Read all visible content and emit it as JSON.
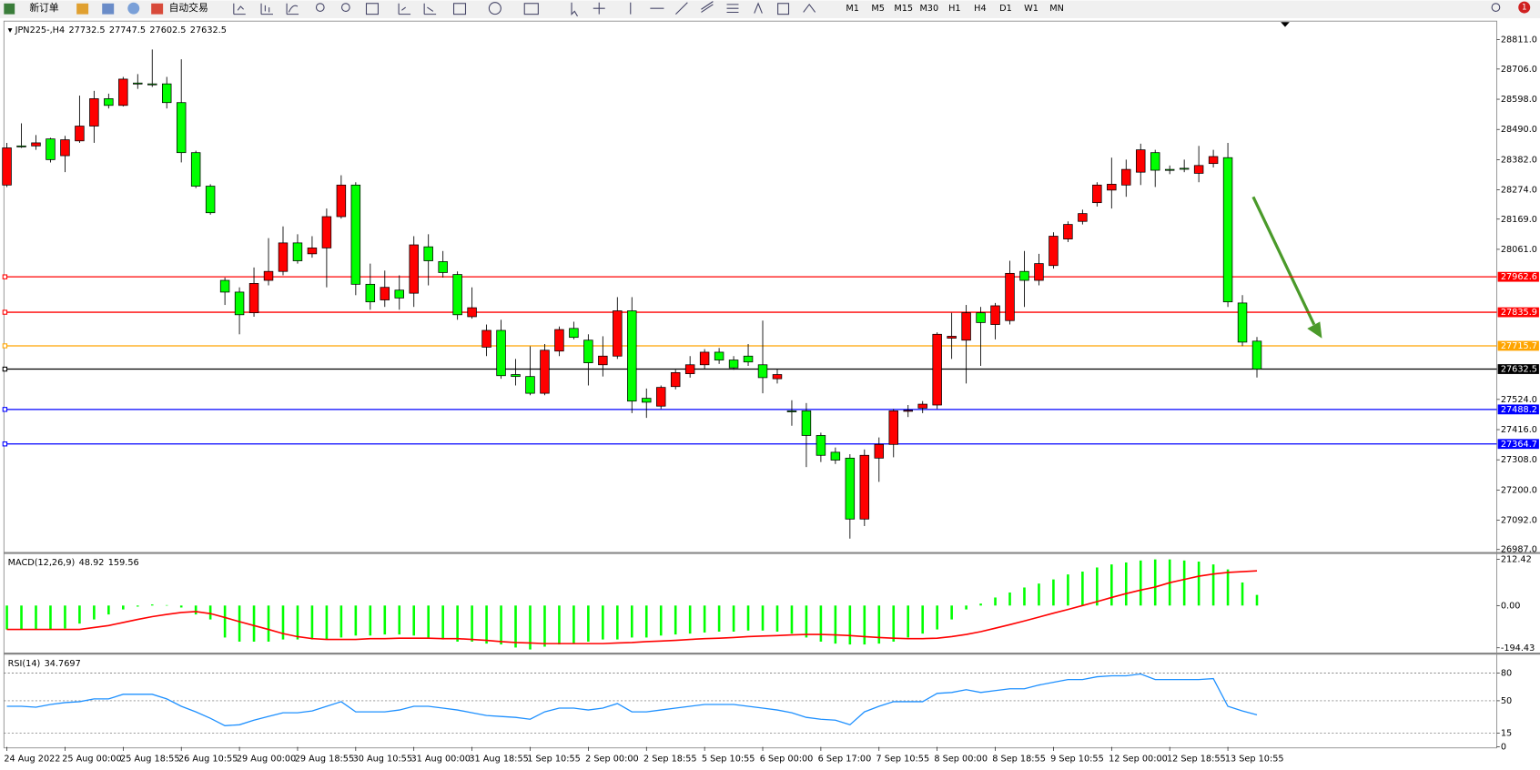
{
  "toolbar": {
    "new_order": "新订单",
    "auto_trading": "自动交易",
    "timeframes": [
      "M1",
      "M5",
      "M15",
      "M30",
      "H1",
      "H4",
      "D1",
      "W1",
      "MN"
    ],
    "notifications": 1
  },
  "chart_data": [
    {
      "type": "candlestick",
      "title": "JPN225-,H4",
      "ohlc_header": [
        27732.5,
        27747.5,
        27602.5,
        27632.5
      ],
      "categories": [
        "24 Aug 2022",
        null,
        null,
        null,
        "25 Aug 00:00",
        null,
        null,
        null,
        "25 Aug 18:55",
        null,
        null,
        null,
        "26 Aug 10:55",
        null,
        null,
        null,
        "29 Aug 00:00",
        null,
        null,
        null,
        "29 Aug 18:55",
        null,
        null,
        null,
        "30 Aug 10:55",
        null,
        null,
        null,
        "31 Aug 00:00",
        null,
        null,
        null,
        "31 Aug 18:55",
        null,
        null,
        null,
        "1 Sep 10:55",
        null,
        null,
        null,
        "2 Sep 00:00",
        null,
        null,
        null,
        "2 Sep 18:55",
        null,
        null,
        null,
        "5 Sep 10:55",
        null,
        null,
        null,
        "6 Sep 00:00",
        null,
        null,
        null,
        "6 Sep 17:00",
        null,
        null,
        null,
        "7 Sep 10:55",
        null,
        null,
        null,
        "8 Sep 00:00",
        null,
        null,
        null,
        "8 Sep 18:55",
        null,
        null,
        null,
        "9 Sep 10:55",
        null,
        null,
        null,
        "12 Sep 00:00",
        null,
        null,
        null,
        "12 Sep 18:55",
        null,
        null,
        null,
        "13 Sep 10:55",
        null,
        null
      ],
      "open": [
        28291,
        28431,
        28431,
        28456,
        28396,
        28449,
        28502,
        28600,
        28576,
        28656,
        28653,
        28653,
        28586,
        28407,
        28287,
        27950,
        27908,
        27834,
        27950,
        27982,
        28084,
        28045,
        28066,
        28178,
        28291,
        27936,
        27880,
        27915,
        27904,
        28070,
        28017,
        27971,
        27820,
        27711,
        27771,
        27613,
        27606,
        27546,
        27697,
        27778,
        27736,
        27648,
        27679,
        27841,
        27528,
        27500,
        27570,
        27616,
        27648,
        27693,
        27665,
        27679,
        27648,
        27598,
        27483,
        27483,
        27395,
        27335,
        27314,
        27096,
        27314,
        27363,
        27483,
        27493,
        27504,
        27743,
        27736,
        27834,
        27792,
        27806,
        27982,
        27950,
        28003,
        28098,
        28161,
        28228,
        28273,
        28291,
        28337,
        28407,
        28347,
        28351,
        28333,
        28368,
        28389,
        27869,
        27732.5
      ],
      "high": [
        28442,
        28512,
        28470,
        28460,
        28467,
        28611,
        28628,
        28618,
        28678,
        28688,
        28776,
        28678,
        28741,
        28414,
        28294,
        27960,
        27925,
        27996,
        28101,
        28143,
        28115,
        28108,
        28207,
        28326,
        28301,
        28010,
        27985,
        27968,
        28108,
        28115,
        28055,
        27982,
        27925,
        27792,
        27809,
        27669,
        27714,
        27722,
        27785,
        27802,
        27757,
        27750,
        27890,
        27890,
        27563,
        27574,
        27630,
        27679,
        27704,
        27708,
        27679,
        27722,
        27806,
        27634,
        27521,
        27511,
        27405,
        27352,
        27328,
        27345,
        27388,
        27490,
        27504,
        27518,
        27764,
        27834,
        27862,
        27855,
        27869,
        28020,
        28055,
        28045,
        28122,
        28161,
        28203,
        28301,
        28389,
        28382,
        28439,
        28417,
        28361,
        28382,
        28431,
        28417,
        28442,
        27897,
        27747.5
      ],
      "low": [
        28284,
        28424,
        28417,
        28372,
        28337,
        28442,
        28442,
        28565,
        28572,
        28635,
        28642,
        28565,
        28372,
        28280,
        28185,
        27862,
        27757,
        27820,
        27932,
        27968,
        28010,
        28031,
        27925,
        28171,
        27897,
        27845,
        27855,
        27845,
        27855,
        27932,
        27960,
        27809,
        27813,
        27679,
        27598,
        27574,
        27539,
        27539,
        27679,
        27739,
        27574,
        27606,
        27669,
        27475,
        27458,
        27490,
        27560,
        27602,
        27634,
        27651,
        27630,
        27644,
        27546,
        27581,
        27430,
        27282,
        27300,
        27293,
        27026,
        27071,
        27229,
        27317,
        27461,
        27475,
        27490,
        27669,
        27581,
        27644,
        27739,
        27792,
        27855,
        27932,
        27992,
        28087,
        28150,
        28214,
        28207,
        28249,
        28291,
        28284,
        28330,
        28337,
        28301,
        28354,
        27855,
        27715,
        27602.5
      ],
      "close": [
        28424,
        28428,
        28442,
        28382,
        28453,
        28502,
        28600,
        28576,
        28670,
        28653,
        28650,
        28586,
        28407,
        28287,
        28192,
        27908,
        27827,
        27939,
        27982,
        28084,
        28020,
        28066,
        28178,
        28291,
        27936,
        27873,
        27925,
        27887,
        28077,
        28020,
        27978,
        27827,
        27852,
        27771,
        27609,
        27606,
        27546,
        27700,
        27774,
        27746,
        27655,
        27679,
        27841,
        27518,
        27514,
        27567,
        27620,
        27648,
        27693,
        27665,
        27637,
        27658,
        27602,
        27613,
        27480,
        27395,
        27324,
        27307,
        27096,
        27324,
        27363,
        27483,
        27485,
        27507,
        27757,
        27750,
        27834,
        27799,
        27859,
        27975,
        27950,
        28010,
        28108,
        28150,
        28189,
        28291,
        28294,
        28347,
        28417,
        28344,
        28344,
        28348,
        28361,
        28393,
        27873,
        27729,
        27632.5
      ],
      "up_color": "#ff0000",
      "down_color": "#00ff00",
      "ylim": [
        26980,
        28874
      ],
      "yticks": [
        {
          "value": 28811,
          "label": "28811.0"
        },
        {
          "value": 28706,
          "label": "28706.0"
        },
        {
          "value": 28598,
          "label": "28598.0"
        },
        {
          "value": 28490,
          "label": "28490.0"
        },
        {
          "value": 28382,
          "label": "28382.0"
        },
        {
          "value": 28274,
          "label": "28274.0"
        },
        {
          "value": 28169,
          "label": "28169.0"
        },
        {
          "value": 28061,
          "label": "28061.0"
        },
        {
          "value": 27524,
          "label": "27524.0"
        },
        {
          "value": 27416,
          "label": "27416.0"
        },
        {
          "value": 27308,
          "label": "27308.0"
        },
        {
          "value": 27200,
          "label": "27200.0"
        },
        {
          "value": 27092,
          "label": "27092.0"
        },
        {
          "value": 26987,
          "label": "26987.0"
        }
      ],
      "hlines": [
        {
          "value": 27962.6,
          "color": "#ff0000"
        },
        {
          "value": 27835.9,
          "color": "#ff0000"
        },
        {
          "value": 27715.7,
          "color": "#ffa500"
        },
        {
          "value": 27632.5,
          "color": "#000000"
        },
        {
          "value": 27488.2,
          "color": "#0000ff"
        },
        {
          "value": 27364.7,
          "color": "#0000ff"
        }
      ]
    },
    {
      "type": "macd",
      "title": "MACD(12,26,9)",
      "header_values": [
        48.92,
        159.56
      ],
      "histogram": [
        -110,
        -110,
        -110,
        -110,
        -106,
        -83,
        -64,
        -41,
        -18,
        -5,
        5,
        2,
        -9,
        -41,
        -64,
        -147,
        -166,
        -166,
        -166,
        -156,
        -156,
        -156,
        -156,
        -147,
        -138,
        -138,
        -133,
        -133,
        -138,
        -147,
        -156,
        -166,
        -166,
        -175,
        -179,
        -193,
        -202,
        -189,
        -179,
        -175,
        -166,
        -156,
        -156,
        -147,
        -147,
        -138,
        -133,
        -129,
        -124,
        -120,
        -120,
        -115,
        -115,
        -120,
        -129,
        -147,
        -166,
        -175,
        -179,
        -179,
        -175,
        -166,
        -147,
        -129,
        -110,
        -64,
        -18,
        9,
        37,
        60,
        83,
        101,
        120,
        143,
        156,
        175,
        189,
        198,
        207,
        212,
        212,
        207,
        202,
        189,
        166,
        106,
        48.92
      ],
      "signal": [
        -110,
        -110,
        -110,
        -110,
        -110,
        -110,
        -101,
        -92,
        -78,
        -64,
        -51,
        -41,
        -32,
        -28,
        -37,
        -55,
        -74,
        -92,
        -110,
        -129,
        -143,
        -152,
        -156,
        -156,
        -156,
        -152,
        -152,
        -150,
        -150,
        -150,
        -152,
        -152,
        -156,
        -160,
        -166,
        -170,
        -172,
        -175,
        -175,
        -175,
        -175,
        -175,
        -172,
        -170,
        -166,
        -163,
        -160,
        -156,
        -152,
        -150,
        -147,
        -143,
        -140,
        -138,
        -135,
        -133,
        -133,
        -135,
        -138,
        -143,
        -147,
        -150,
        -152,
        -152,
        -150,
        -143,
        -133,
        -120,
        -104,
        -88,
        -71,
        -53,
        -35,
        -18,
        0,
        18,
        37,
        55,
        71,
        85,
        105,
        120,
        135,
        145,
        152,
        156,
        159.56
      ],
      "histogram_color": "#00ff00",
      "signal_color": "#ff0000",
      "ylim": [
        -212,
        235
      ],
      "yticks": [
        212.42,
        {
          "value": 0,
          "label": "0.00"
        },
        -194.43
      ]
    },
    {
      "type": "line",
      "title": "RSI(14)",
      "header_value": 34.7697,
      "values": [
        44,
        44,
        43,
        46,
        48,
        49,
        52,
        52,
        57,
        57,
        57,
        52,
        44,
        38,
        31,
        23,
        24,
        29,
        33,
        37,
        37,
        39,
        44,
        49,
        38,
        38,
        38,
        40,
        44,
        44,
        42,
        40,
        37,
        34,
        33,
        32,
        30,
        38,
        42,
        42,
        40,
        42,
        47,
        38,
        38,
        40,
        42,
        44,
        46,
        46,
        46,
        44,
        42,
        40,
        37,
        32,
        30,
        29,
        24,
        38,
        44,
        49,
        49,
        49,
        58,
        59,
        62,
        59,
        61,
        63,
        63,
        67,
        70,
        73,
        73,
        76,
        77,
        77,
        79,
        73,
        73,
        73,
        73,
        74,
        44,
        39,
        34.7697
      ],
      "color": "#1e90ff",
      "ylim": [
        0,
        100
      ],
      "yticks": [
        0,
        15,
        50,
        80
      ],
      "levels": [
        15,
        50,
        80
      ]
    }
  ]
}
